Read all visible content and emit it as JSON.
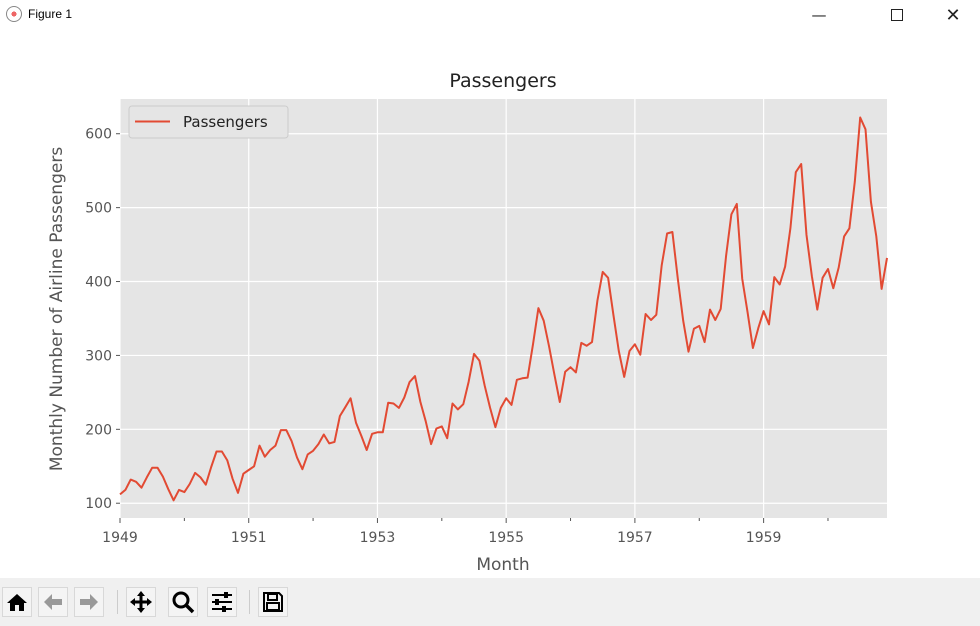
{
  "window": {
    "title": "Figure 1"
  },
  "chart_data": {
    "type": "line",
    "title": "Passengers",
    "xlabel": "Month",
    "ylabel": "Monthly Number of Airline Passengers",
    "legend": {
      "entries": [
        "Passengers"
      ],
      "placement": "top-left"
    },
    "grid": true,
    "xlim": [
      1949,
      1960.917
    ],
    "ylim": [
      80,
      647
    ],
    "xticks": [
      1949,
      1951,
      1953,
      1955,
      1957,
      1959
    ],
    "xtick_labels": [
      "1949",
      "1951",
      "1953",
      "1955",
      "1957",
      "1959"
    ],
    "xminor": [
      1950,
      1952,
      1954,
      1956,
      1958,
      1960
    ],
    "yticks": [
      100,
      200,
      300,
      400,
      500,
      600
    ],
    "ytick_labels": [
      "100",
      "200",
      "300",
      "400",
      "500",
      "600"
    ],
    "color": "#E24A33",
    "series": [
      {
        "name": "Passengers",
        "start": "1949-01",
        "freq": "monthly",
        "values": [
          112,
          118,
          132,
          129,
          121,
          135,
          148,
          148,
          136,
          119,
          104,
          118,
          115,
          126,
          141,
          135,
          125,
          149,
          170,
          170,
          158,
          133,
          114,
          140,
          145,
          150,
          178,
          163,
          172,
          178,
          199,
          199,
          184,
          162,
          146,
          166,
          171,
          180,
          193,
          181,
          183,
          218,
          230,
          242,
          209,
          191,
          172,
          194,
          196,
          196,
          236,
          235,
          229,
          243,
          264,
          272,
          237,
          211,
          180,
          201,
          204,
          188,
          235,
          227,
          234,
          264,
          302,
          293,
          259,
          229,
          203,
          229,
          242,
          233,
          267,
          269,
          270,
          315,
          364,
          347,
          312,
          274,
          237,
          278,
          284,
          277,
          317,
          313,
          318,
          374,
          413,
          405,
          355,
          306,
          271,
          306,
          315,
          301,
          356,
          348,
          355,
          422,
          465,
          467,
          404,
          347,
          305,
          336,
          340,
          318,
          362,
          348,
          363,
          435,
          491,
          505,
          404,
          359,
          310,
          337,
          360,
          342,
          406,
          396,
          420,
          472,
          548,
          559,
          463,
          407,
          362,
          405,
          417,
          391,
          419,
          461,
          472,
          535,
          622,
          606,
          508,
          461,
          390,
          432
        ]
      }
    ]
  },
  "toolbar": {
    "buttons": [
      "home",
      "back",
      "forward",
      "pan",
      "zoom",
      "configure-subplots",
      "save"
    ]
  }
}
